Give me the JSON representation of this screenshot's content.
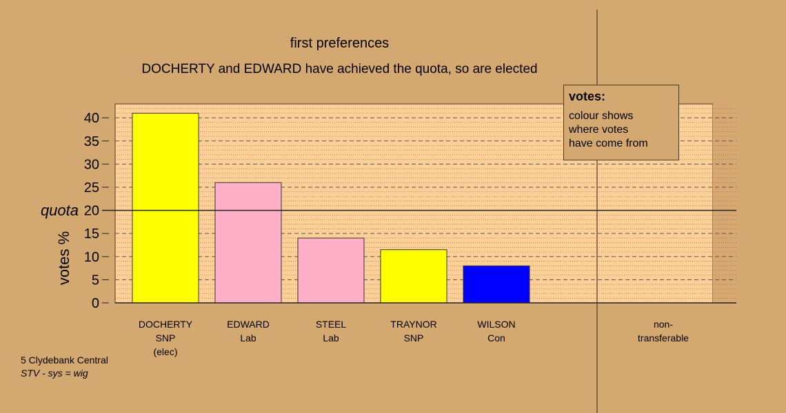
{
  "chart_data": {
    "type": "bar",
    "title": "first preferences",
    "subtitle": "DOCHERTY and EDWARD have achieved the quota, so are elected",
    "ylabel": "votes %",
    "ylim": [
      0,
      43
    ],
    "yticks": [
      0,
      5,
      10,
      15,
      20,
      25,
      30,
      35,
      40
    ],
    "quota": {
      "label": "quota",
      "value": 20
    },
    "categories": [
      {
        "lines": [
          "DOCHERTY",
          "SNP",
          "(elec)"
        ],
        "value": 41,
        "color": "#ffff00"
      },
      {
        "lines": [
          "EDWARD",
          "Lab"
        ],
        "value": 26,
        "color": "#ffb0c8"
      },
      {
        "lines": [
          "STEEL",
          "Lab"
        ],
        "value": 14,
        "color": "#ffb0c8"
      },
      {
        "lines": [
          "TRAYNOR",
          "SNP"
        ],
        "value": 11.5,
        "color": "#ffff00"
      },
      {
        "lines": [
          "WILSON",
          "Con"
        ],
        "value": 8,
        "color": "#0000ff"
      }
    ],
    "nontransferable": {
      "lines": [
        "non-",
        "transferable"
      ],
      "value": 0
    },
    "legend": {
      "title": "votes:",
      "text": "colour shows\nwhere votes\nhave come from"
    },
    "grid": true
  },
  "footer": {
    "line1": "5 Clydebank Central",
    "line2": "STV - sys = wig"
  },
  "colors": {
    "background": "#d4a871",
    "plot_area": "#ffcf98",
    "nt_area": "#d8a873"
  }
}
